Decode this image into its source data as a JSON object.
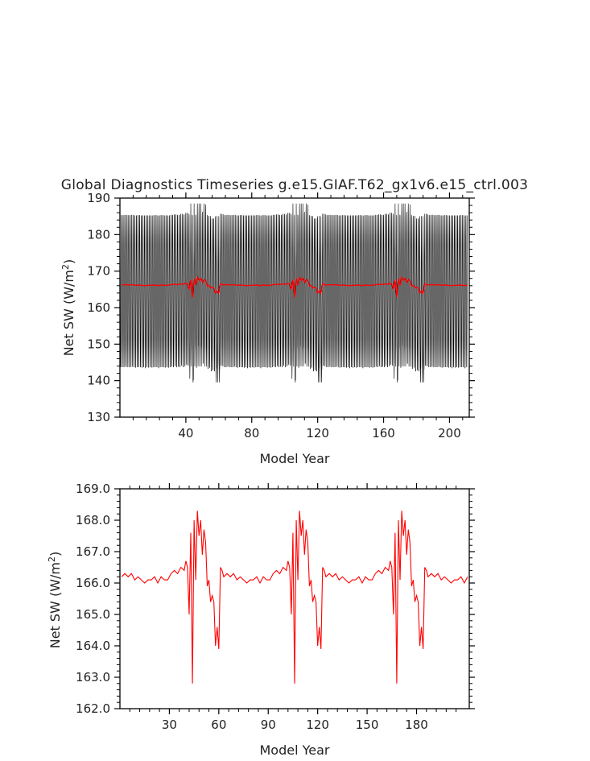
{
  "title": "Global Diagnostics Timeseries g.e15.GIAF.T62_gx1v6.e15_ctrl.003",
  "colors": {
    "monthly": "#000000",
    "annual": "#ff0000",
    "axes": "#000000"
  },
  "chart_data": [
    {
      "type": "line",
      "xlabel": "Model Year",
      "ylabel": "Net SW (W/m2)",
      "xlim": [
        0,
        212
      ],
      "ylim": [
        130,
        190
      ],
      "xticks": [
        "40",
        "80",
        "120",
        "160",
        "200"
      ],
      "yticks": [
        "130",
        "140",
        "150",
        "160",
        "170",
        "180",
        "190"
      ],
      "series": [
        {
          "style": "monthly, black",
          "seasonal_cycle_min": 143,
          "seasonal_cycle_max": 186,
          "extreme_min": 139.5,
          "extreme_max": 188.5
        },
        {
          "style": "annual mean, red",
          "mean_level": 166.2
        }
      ]
    },
    {
      "type": "line",
      "xlabel": "Model Year",
      "ylabel": "Net SW (W/m2)",
      "xlim": [
        0,
        212
      ],
      "ylim": [
        162.0,
        169.0
      ],
      "xticks": [
        "30",
        "60",
        "90",
        "120",
        "150",
        "180"
      ],
      "yticks": [
        "162.0",
        "163.0",
        "164.0",
        "165.0",
        "166.0",
        "167.0",
        "168.0",
        "169.0"
      ],
      "cycle_length_years": 62,
      "cycle_starts": [
        0,
        62,
        124,
        186
      ],
      "cycle_profile": {
        "x": [
          1,
          3,
          5,
          7,
          9,
          11,
          13,
          15,
          17,
          19,
          21,
          23,
          25,
          27,
          29,
          31,
          33,
          35,
          37,
          39,
          40,
          41,
          42,
          43,
          44,
          45,
          46,
          47,
          48,
          49,
          50,
          51,
          52,
          53,
          54,
          55,
          56,
          57,
          58,
          59,
          60,
          61,
          62
        ],
        "y": [
          166.2,
          166.3,
          166.2,
          166.3,
          166.1,
          166.2,
          166.1,
          166.0,
          166.1,
          166.1,
          166.2,
          166.0,
          166.2,
          166.1,
          166.1,
          166.3,
          166.4,
          166.3,
          166.5,
          166.4,
          166.7,
          166.5,
          165.0,
          167.6,
          162.8,
          168.0,
          166.1,
          168.3,
          167.5,
          168.0,
          166.9,
          167.7,
          167.3,
          165.9,
          166.1,
          165.4,
          165.6,
          165.4,
          164.0,
          164.6,
          163.9,
          166.5,
          166.4
        ]
      }
    }
  ]
}
